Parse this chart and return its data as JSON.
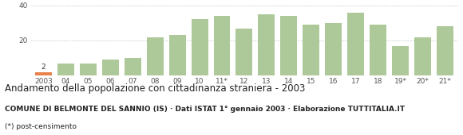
{
  "categories": [
    "2003",
    "04",
    "05",
    "06",
    "07",
    "08",
    "09",
    "10",
    "11*",
    "12",
    "13",
    "14",
    "15",
    "16",
    "17",
    "18",
    "19*",
    "20*",
    "21*"
  ],
  "values": [
    2,
    7,
    7,
    9,
    10,
    22,
    23,
    32,
    34,
    27,
    35,
    34,
    29,
    30,
    36,
    29,
    17,
    22,
    28
  ],
  "bar_color_main": "#adc99a",
  "bar_color_first": "#e8824a",
  "title": "Andamento della popolazione con cittadinanza straniera - 2003",
  "subtitle": "COMUNE DI BELMONTE DEL SANNIO (IS) · Dati ISTAT 1° gennaio 2003 · Elaborazione TUTTITALIA.IT",
  "footnote": "(*) post-censimento",
  "ylim": [
    0,
    40
  ],
  "yticks": [
    0,
    20,
    40
  ],
  "first_bar_label": "2",
  "grid_color": "#cccccc",
  "background_color": "#ffffff",
  "title_fontsize": 8.5,
  "subtitle_fontsize": 6.5,
  "footnote_fontsize": 6.5,
  "tick_fontsize": 6.5
}
